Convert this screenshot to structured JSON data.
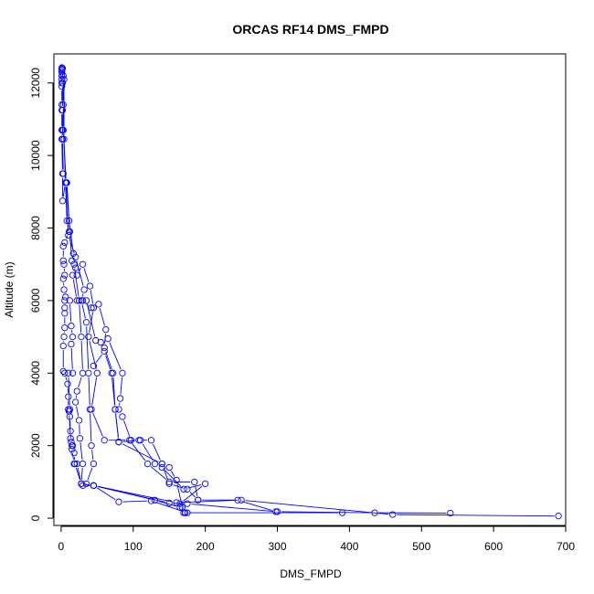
{
  "chart_data": {
    "type": "line",
    "title": "ORCAS RF14 DMS_FMPD",
    "xlabel": "DMS_FMPD",
    "ylabel": "Altitude (m)",
    "xlim": [
      -10,
      700
    ],
    "ylim": [
      -200,
      12800
    ],
    "x_ticks": [
      0,
      100,
      200,
      300,
      400,
      500,
      600,
      700
    ],
    "y_ticks": [
      0,
      2000,
      4000,
      6000,
      8000,
      10000,
      12000
    ],
    "grid": false,
    "legend": "none",
    "colors": {
      "series": "#0000ff",
      "axes": "#000000"
    },
    "series": [
      {
        "values": [
          [
            1,
            12420
          ],
          [
            1,
            12380
          ],
          [
            1,
            12350
          ],
          [
            1,
            12300
          ],
          [
            1,
            12200
          ],
          [
            1,
            12100
          ],
          [
            1,
            12000
          ],
          [
            1,
            11900
          ],
          [
            1,
            11400
          ],
          [
            1,
            11250
          ],
          [
            1,
            10700
          ],
          [
            2,
            10700
          ],
          [
            1,
            10450
          ],
          [
            2,
            9500
          ],
          [
            2,
            8750
          ],
          [
            6,
            9250
          ],
          [
            8,
            8200
          ],
          [
            11,
            7900
          ],
          [
            5,
            7600
          ],
          [
            3,
            7500
          ],
          [
            3,
            7100
          ],
          [
            4,
            7000
          ],
          [
            5,
            6700
          ],
          [
            3,
            6600
          ],
          [
            4,
            6300
          ],
          [
            6,
            6100
          ],
          [
            5,
            6000
          ],
          [
            5,
            5800
          ],
          [
            5,
            5650
          ],
          [
            5,
            5250
          ],
          [
            4,
            5000
          ],
          [
            3,
            4750
          ],
          [
            3,
            4050
          ],
          [
            5,
            4000
          ],
          [
            9,
            3700
          ],
          [
            10,
            3350
          ],
          [
            10,
            3000
          ],
          [
            11,
            2950
          ],
          [
            12,
            2800
          ],
          [
            13,
            2400
          ],
          [
            14,
            2100
          ],
          [
            16,
            2000
          ],
          [
            15,
            1900
          ],
          [
            18,
            1500
          ],
          [
            22,
            1500
          ],
          [
            28,
            950
          ],
          [
            30,
            900
          ],
          [
            45,
            900
          ],
          [
            80,
            450
          ],
          [
            125,
            480
          ],
          [
            175,
            150
          ]
        ]
      },
      {
        "values": [
          [
            2,
            12400
          ],
          [
            2,
            12000
          ],
          [
            2,
            11250
          ],
          [
            2,
            10450
          ],
          [
            3,
            9500
          ],
          [
            8,
            9250
          ],
          [
            12,
            7900
          ],
          [
            15,
            7100
          ],
          [
            20,
            6900
          ],
          [
            16,
            6700
          ],
          [
            22,
            6000
          ],
          [
            12,
            6000
          ],
          [
            14,
            5300
          ],
          [
            16,
            5000
          ],
          [
            14,
            4800
          ],
          [
            16,
            4000
          ],
          [
            10,
            4000
          ],
          [
            12,
            3000
          ],
          [
            11,
            2950
          ],
          [
            13,
            2200
          ],
          [
            15,
            2000
          ],
          [
            18,
            1800
          ],
          [
            19,
            1500
          ],
          [
            28,
            950
          ],
          [
            45,
            900
          ],
          [
            130,
            500
          ],
          [
            165,
            300
          ],
          [
            172,
            150
          ],
          [
            390,
            150
          ]
        ]
      },
      {
        "values": [
          [
            3,
            12200
          ],
          [
            3,
            11400
          ],
          [
            3,
            10700
          ],
          [
            7,
            9250
          ],
          [
            11,
            8200
          ],
          [
            17,
            7300
          ],
          [
            18,
            7000
          ],
          [
            25,
            6000
          ],
          [
            28,
            5000
          ],
          [
            30,
            4000
          ],
          [
            22,
            3500
          ],
          [
            20,
            3200
          ],
          [
            25,
            2700
          ],
          [
            26,
            2200
          ],
          [
            30,
            1500
          ],
          [
            28,
            950
          ],
          [
            45,
            900
          ],
          [
            150,
            420
          ],
          [
            175,
            400
          ],
          [
            300,
            180
          ],
          [
            435,
            150
          ],
          [
            540,
            140
          ]
        ]
      },
      {
        "values": [
          [
            4,
            12100
          ],
          [
            4,
            10450
          ],
          [
            6,
            9250
          ],
          [
            10,
            7800
          ],
          [
            20,
            7200
          ],
          [
            32,
            6300
          ],
          [
            28,
            6000
          ],
          [
            35,
            5400
          ],
          [
            38,
            4000
          ],
          [
            40,
            3000
          ],
          [
            42,
            2000
          ],
          [
            45,
            1500
          ],
          [
            35,
            950
          ],
          [
            45,
            900
          ],
          [
            160,
            430
          ],
          [
            250,
            500
          ],
          [
            460,
            100
          ],
          [
            690,
            60
          ]
        ]
      },
      {
        "values": [
          [
            22,
            6700
          ],
          [
            30,
            7000
          ],
          [
            40,
            6400
          ],
          [
            45,
            5800
          ],
          [
            38,
            5000
          ],
          [
            50,
            4000
          ],
          [
            42,
            3000
          ],
          [
            60,
            2150
          ],
          [
            95,
            2150
          ],
          [
            120,
            1500
          ],
          [
            150,
            1000
          ],
          [
            185,
            1000
          ],
          [
            190,
            500
          ],
          [
            245,
            500
          ],
          [
            298,
            180
          ]
        ]
      },
      {
        "values": [
          [
            30,
            6000
          ],
          [
            42,
            5800
          ],
          [
            52,
            5900
          ],
          [
            62,
            5200
          ],
          [
            60,
            4700
          ],
          [
            72,
            4000
          ],
          [
            75,
            3000
          ],
          [
            80,
            2100
          ],
          [
            108,
            2150
          ],
          [
            125,
            2150
          ],
          [
            140,
            1500
          ],
          [
            150,
            1400
          ],
          [
            160,
            1050
          ],
          [
            168,
            300
          ],
          [
            170,
            150
          ]
        ]
      },
      {
        "values": [
          [
            35,
            6000
          ],
          [
            48,
            4900
          ],
          [
            55,
            4850
          ],
          [
            65,
            4950
          ],
          [
            85,
            4000
          ],
          [
            82,
            3300
          ],
          [
            80,
            3000
          ],
          [
            85,
            2800
          ],
          [
            97,
            2150
          ],
          [
            110,
            2150
          ],
          [
            130,
            1500
          ],
          [
            140,
            1400
          ],
          [
            170,
            800
          ],
          [
            200,
            950
          ],
          [
            165,
            400
          ],
          [
            172,
            150
          ]
        ]
      },
      {
        "values": [
          [
            45,
            4200
          ],
          [
            60,
            4600
          ],
          [
            70,
            4000
          ],
          [
            75,
            3000
          ],
          [
            80,
            2100
          ],
          [
            140,
            1500
          ],
          [
            150,
            950
          ],
          [
            175,
            800
          ],
          [
            190,
            500
          ]
        ]
      }
    ]
  }
}
